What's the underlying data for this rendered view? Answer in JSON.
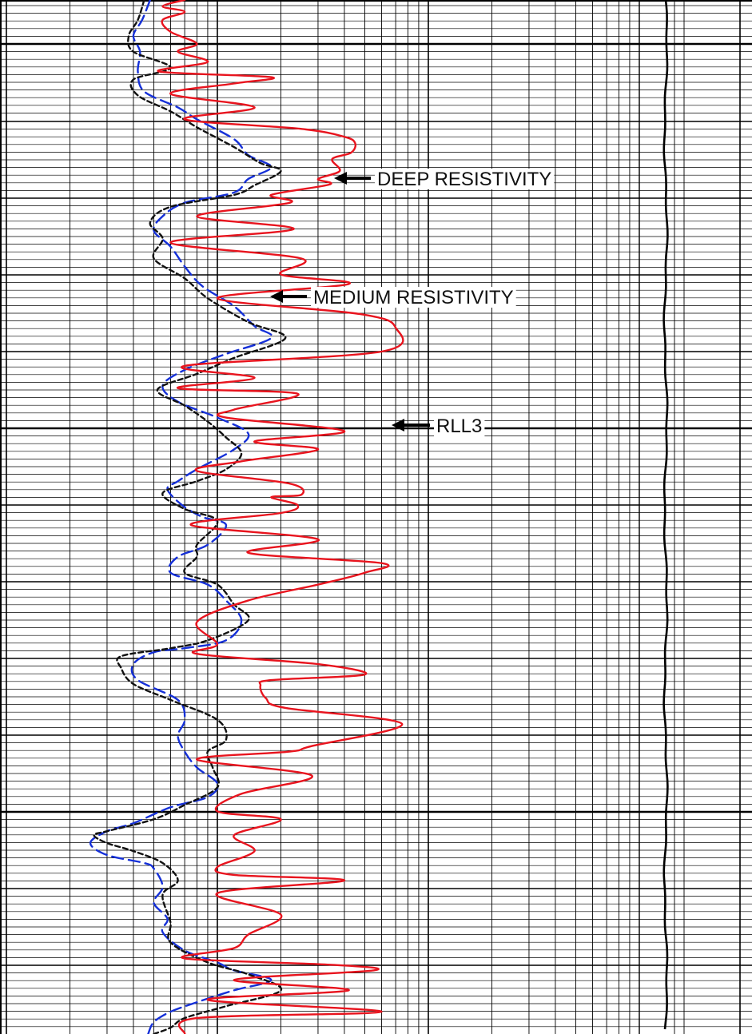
{
  "chart_data": {
    "type": "line",
    "title": "",
    "xlabel": "",
    "ylabel": "",
    "x_scale": "log",
    "x_decades": 3,
    "depth_divisions": 13,
    "grid": true,
    "series": [
      {
        "name": "RLL3",
        "color": "#e8141e",
        "dash": "solid",
        "points": [
          [
            7,
            0.0
          ],
          [
            5.5,
            0.08
          ],
          [
            7,
            0.15
          ],
          [
            5.5,
            0.25
          ],
          [
            6,
            0.4
          ],
          [
            8,
            0.55
          ],
          [
            6.5,
            0.65
          ],
          [
            9,
            0.78
          ],
          [
            5.3,
            0.9
          ],
          [
            18,
            0.97
          ],
          [
            12,
            1.05
          ],
          [
            6,
            1.18
          ],
          [
            15,
            1.35
          ],
          [
            7,
            1.5
          ],
          [
            25,
            1.62
          ],
          [
            40,
            1.72
          ],
          [
            45,
            1.8
          ],
          [
            43,
            1.92
          ],
          [
            35,
            2.0
          ],
          [
            38,
            2.15
          ],
          [
            30,
            2.25
          ],
          [
            34,
            2.32
          ],
          [
            18,
            2.45
          ],
          [
            22,
            2.55
          ],
          [
            8,
            2.72
          ],
          [
            23,
            2.88
          ],
          [
            6,
            3.05
          ],
          [
            25,
            3.25
          ],
          [
            20,
            3.45
          ],
          [
            42,
            3.57
          ],
          [
            10,
            3.75
          ],
          [
            48,
            3.95
          ],
          [
            70,
            4.12
          ],
          [
            60,
            4.42
          ],
          [
            7,
            4.6
          ],
          [
            15,
            4.75
          ],
          [
            6.5,
            4.88
          ],
          [
            24,
            4.95
          ],
          [
            12,
            5.15
          ],
          [
            11,
            5.25
          ],
          [
            40,
            5.42
          ],
          [
            15,
            5.55
          ],
          [
            30,
            5.65
          ],
          [
            13,
            5.8
          ],
          [
            8,
            5.92
          ],
          [
            22,
            6.08
          ],
          [
            25,
            6.22
          ],
          [
            18,
            6.25
          ],
          [
            24,
            6.35
          ],
          [
            20,
            6.45
          ],
          [
            7.5,
            6.6
          ],
          [
            30,
            6.78
          ],
          [
            14,
            6.95
          ],
          [
            60,
            7.08
          ],
          [
            50,
            7.2
          ],
          [
            30,
            7.35
          ],
          [
            14,
            7.55
          ],
          [
            8,
            7.82
          ],
          [
            10,
            8.1
          ],
          [
            8,
            8.22
          ],
          [
            30,
            8.35
          ],
          [
            50,
            8.48
          ],
          [
            18,
            8.55
          ],
          [
            16,
            8.62
          ],
          [
            17,
            8.78
          ],
          [
            21,
            8.9
          ],
          [
            75,
            9.1
          ],
          [
            28,
            9.38
          ],
          [
            22,
            9.45
          ],
          [
            8,
            9.55
          ],
          [
            28,
            9.75
          ],
          [
            13,
            9.98
          ],
          [
            10,
            10.2
          ],
          [
            20,
            10.3
          ],
          [
            12,
            10.5
          ],
          [
            15,
            10.7
          ],
          [
            10,
            10.9
          ],
          [
            12,
            11.0
          ],
          [
            40,
            11.07
          ],
          [
            10,
            11.23
          ],
          [
            20,
            11.5
          ],
          [
            14,
            11.75
          ],
          [
            12,
            11.92
          ],
          [
            7,
            12.05
          ],
          [
            35,
            12.13
          ],
          [
            55,
            12.2
          ],
          [
            12,
            12.32
          ],
          [
            42,
            12.45
          ],
          [
            9,
            12.57
          ],
          [
            60,
            12.72
          ],
          [
            8,
            12.8
          ],
          [
            7,
            13.0
          ]
        ]
      },
      {
        "name": "DEEP RESISTIVITY",
        "color": "#111111",
        "dash": "dashed",
        "points": [
          [
            4.5,
            0.0
          ],
          [
            4.2,
            0.25
          ],
          [
            3.8,
            0.45
          ],
          [
            4,
            0.65
          ],
          [
            6,
            0.85
          ],
          [
            4,
            1.0
          ],
          [
            4.2,
            1.2
          ],
          [
            6,
            1.4
          ],
          [
            8,
            1.6
          ],
          [
            12,
            1.85
          ],
          [
            16,
            2.05
          ],
          [
            20,
            2.15
          ],
          [
            15,
            2.33
          ],
          [
            12,
            2.45
          ],
          [
            6,
            2.6
          ],
          [
            4.8,
            2.8
          ],
          [
            5.5,
            3.0
          ],
          [
            5,
            3.25
          ],
          [
            7,
            3.5
          ],
          [
            9,
            3.75
          ],
          [
            14,
            4.05
          ],
          [
            21,
            4.25
          ],
          [
            12,
            4.5
          ],
          [
            8,
            4.7
          ],
          [
            5.2,
            4.9
          ],
          [
            7,
            5.1
          ],
          [
            9,
            5.3
          ],
          [
            11,
            5.5
          ],
          [
            13,
            5.7
          ],
          [
            11,
            5.9
          ],
          [
            8,
            6.05
          ],
          [
            5.5,
            6.2
          ],
          [
            7,
            6.4
          ],
          [
            10,
            6.55
          ],
          [
            8,
            6.85
          ],
          [
            8,
            7.0
          ],
          [
            7,
            7.2
          ],
          [
            10,
            7.35
          ],
          [
            12,
            7.6
          ],
          [
            14,
            7.8
          ],
          [
            9,
            8.05
          ],
          [
            6,
            8.15
          ],
          [
            3.5,
            8.25
          ],
          [
            3.5,
            8.4
          ],
          [
            4,
            8.6
          ],
          [
            6,
            8.8
          ],
          [
            10,
            9.05
          ],
          [
            11,
            9.3
          ],
          [
            9,
            9.45
          ],
          [
            9.5,
            9.65
          ],
          [
            10,
            9.9
          ],
          [
            7,
            10.12
          ],
          [
            5,
            10.3
          ],
          [
            3,
            10.45
          ],
          [
            2.6,
            10.5
          ],
          [
            3,
            10.6
          ],
          [
            4,
            10.7
          ],
          [
            5.5,
            10.85
          ],
          [
            6.5,
            11.07
          ],
          [
            5.5,
            11.25
          ],
          [
            6,
            11.6
          ],
          [
            6,
            11.85
          ],
          [
            9,
            12.1
          ],
          [
            14,
            12.25
          ],
          [
            20,
            12.45
          ],
          [
            11,
            12.65
          ],
          [
            7,
            12.8
          ],
          [
            6,
            12.92
          ],
          [
            5,
            13.0
          ]
        ]
      },
      {
        "name": "MEDIUM RESISTIVITY",
        "color": "#1530d8",
        "dash": "dashed",
        "points": [
          [
            4.8,
            0.0
          ],
          [
            4.4,
            0.25
          ],
          [
            4,
            0.45
          ],
          [
            4.3,
            0.65
          ],
          [
            4.2,
            0.9
          ],
          [
            4.5,
            1.15
          ],
          [
            6.5,
            1.35
          ],
          [
            8,
            1.5
          ],
          [
            12,
            1.75
          ],
          [
            14,
            1.95
          ],
          [
            18,
            2.1
          ],
          [
            14,
            2.25
          ],
          [
            12,
            2.42
          ],
          [
            7,
            2.55
          ],
          [
            5.5,
            2.72
          ],
          [
            5,
            2.9
          ],
          [
            6,
            3.1
          ],
          [
            7,
            3.35
          ],
          [
            8.5,
            3.6
          ],
          [
            12,
            3.85
          ],
          [
            15,
            4.1
          ],
          [
            18,
            4.25
          ],
          [
            11,
            4.45
          ],
          [
            7,
            4.65
          ],
          [
            5.5,
            4.85
          ],
          [
            6.5,
            5.05
          ],
          [
            10,
            5.25
          ],
          [
            14,
            5.45
          ],
          [
            12,
            5.65
          ],
          [
            8,
            5.9
          ],
          [
            6.5,
            6.05
          ],
          [
            5.8,
            6.15
          ],
          [
            6.8,
            6.35
          ],
          [
            8.5,
            6.5
          ],
          [
            11,
            6.6
          ],
          [
            9,
            6.85
          ],
          [
            6.5,
            7.0
          ],
          [
            6,
            7.2
          ],
          [
            9,
            7.35
          ],
          [
            11,
            7.55
          ],
          [
            13,
            7.8
          ],
          [
            11,
            8.05
          ],
          [
            7,
            8.15
          ],
          [
            5,
            8.2
          ],
          [
            4,
            8.35
          ],
          [
            4.2,
            8.55
          ],
          [
            6.5,
            8.8
          ],
          [
            7,
            9.05
          ],
          [
            6.5,
            9.25
          ],
          [
            7,
            9.45
          ],
          [
            8,
            9.65
          ],
          [
            10,
            9.85
          ],
          [
            9,
            10.02
          ],
          [
            6,
            10.15
          ],
          [
            4,
            10.35
          ],
          [
            3,
            10.45
          ],
          [
            2.5,
            10.6
          ],
          [
            3,
            10.75
          ],
          [
            4.5,
            10.85
          ],
          [
            5,
            10.92
          ],
          [
            5.5,
            11.15
          ],
          [
            5,
            11.35
          ],
          [
            5.8,
            11.55
          ],
          [
            5.5,
            11.72
          ],
          [
            7,
            11.95
          ],
          [
            10,
            12.1
          ],
          [
            12,
            12.2
          ],
          [
            18,
            12.32
          ],
          [
            12,
            12.45
          ],
          [
            8,
            12.6
          ],
          [
            6,
            12.72
          ],
          [
            5,
            12.85
          ],
          [
            4.7,
            13.0
          ]
        ]
      }
    ],
    "annotations": [
      {
        "text": "DEEP RESISTIVITY",
        "series": "DEEP RESISTIVITY"
      },
      {
        "text": "MEDIUM RESISTIVITY",
        "series": "MEDIUM RESISTIVITY"
      },
      {
        "text": "RLL3",
        "series": "RLL3"
      }
    ]
  }
}
